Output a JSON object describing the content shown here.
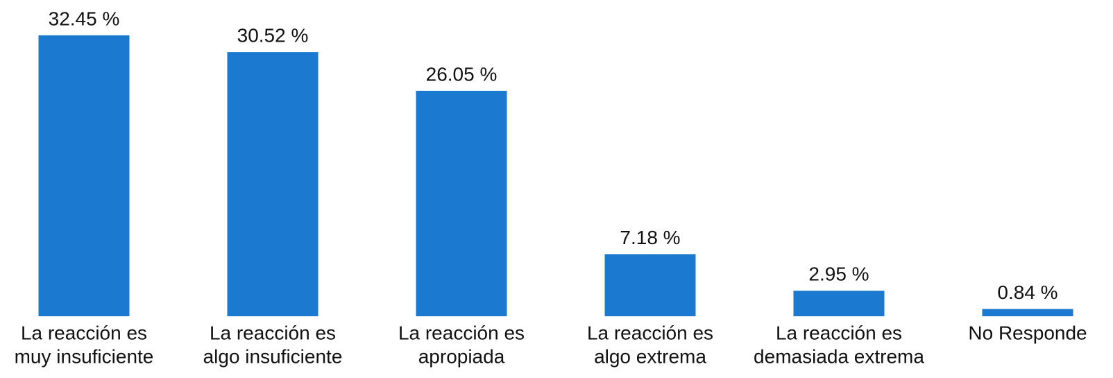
{
  "chart_data": {
    "type": "bar",
    "categories": [
      [
        "La reacción es",
        "muy insuficiente"
      ],
      [
        "La reacción es",
        "algo insuficiente"
      ],
      [
        "La reacción es",
        "apropiada"
      ],
      [
        "La reacción es",
        "algo extrema"
      ],
      [
        "La reacción es",
        "demasiada extrema"
      ],
      [
        "No Responde"
      ]
    ],
    "values": [
      32.45,
      30.52,
      26.05,
      7.18,
      2.95,
      0.84
    ],
    "value_labels": [
      "32.45 %",
      "30.52 %",
      "26.05 %",
      "7.18 %",
      "2.95 %",
      "0.84 %"
    ],
    "color": "#1b79d0"
  }
}
